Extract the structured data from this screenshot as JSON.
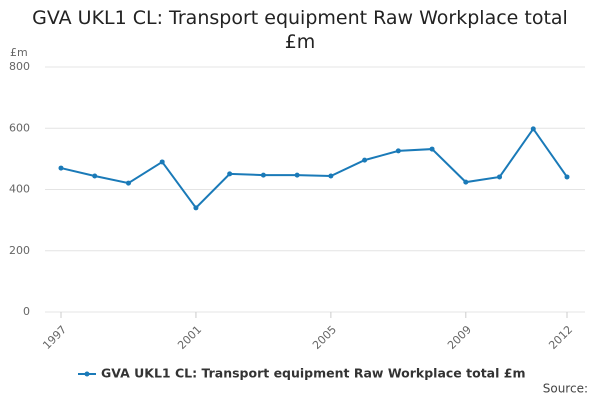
{
  "chart_data": {
    "type": "line",
    "title": "GVA UKL1 CL: Transport equipment Raw Workplace total £m",
    "y_label": "£m",
    "source": "Source:",
    "x": [
      1997,
      1998,
      1999,
      2000,
      2001,
      2002,
      2003,
      2004,
      2005,
      2006,
      2007,
      2008,
      2009,
      2010,
      2011,
      2012
    ],
    "xlim": [
      1997,
      2012
    ],
    "xticks": [
      1997,
      2001,
      2005,
      2009,
      2012
    ],
    "series": [
      {
        "name": "GVA UKL1 CL: Transport equipment Raw Workplace total £m",
        "color": "#1a7ab8",
        "values": [
          470,
          444,
          421,
          490,
          340,
          451,
          447,
          447,
          444,
          496,
          526,
          532,
          424,
          441,
          598,
          441
        ]
      }
    ],
    "ylim": [
      0,
      800
    ],
    "yticks": [
      0,
      200,
      400,
      600,
      800
    ],
    "grid": true
  }
}
